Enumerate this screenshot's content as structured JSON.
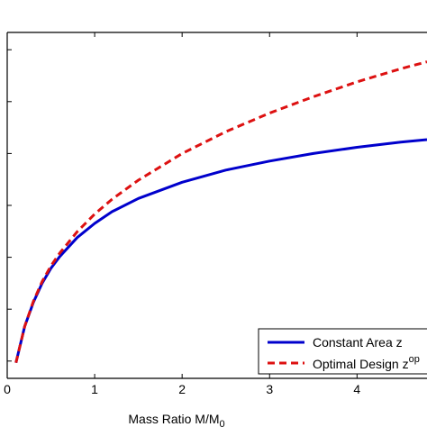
{
  "chart_data": {
    "type": "line",
    "title": "",
    "xlabel": "Mass Ratio M/M",
    "xlabel_subscript": "0",
    "ylabel": "",
    "xlim": [
      0,
      4.8
    ],
    "ylim": [
      0,
      1
    ],
    "x_ticks": [
      0,
      1,
      2,
      3,
      4
    ],
    "x_tick_labels": [
      "0",
      "1",
      "2",
      "3",
      "4"
    ],
    "y_ticks": [
      0.05,
      0.2,
      0.35,
      0.5,
      0.65,
      0.8,
      0.95
    ],
    "grid": false,
    "legend_position": "bottom-right",
    "series": [
      {
        "name": "Constant Area z",
        "color": "#0000cc",
        "style": "solid",
        "x": [
          0.1,
          0.2,
          0.3,
          0.4,
          0.5,
          0.6,
          0.8,
          1.0,
          1.2,
          1.5,
          2.0,
          2.5,
          3.0,
          3.5,
          4.0,
          4.5,
          4.8
        ],
        "y": [
          0.045,
          0.15,
          0.22,
          0.275,
          0.318,
          0.352,
          0.407,
          0.448,
          0.482,
          0.52,
          0.567,
          0.602,
          0.628,
          0.65,
          0.668,
          0.683,
          0.69
        ]
      },
      {
        "name": "Optimal Design z",
        "name_superscript": "op",
        "color": "#dd1111",
        "style": "dashed",
        "x": [
          0.1,
          0.2,
          0.3,
          0.4,
          0.5,
          0.6,
          0.8,
          1.0,
          1.2,
          1.5,
          2.0,
          2.5,
          3.0,
          3.5,
          4.0,
          4.5,
          4.8
        ],
        "y": [
          0.045,
          0.15,
          0.223,
          0.28,
          0.325,
          0.362,
          0.424,
          0.475,
          0.518,
          0.573,
          0.65,
          0.713,
          0.767,
          0.814,
          0.857,
          0.895,
          0.915
        ]
      }
    ]
  }
}
